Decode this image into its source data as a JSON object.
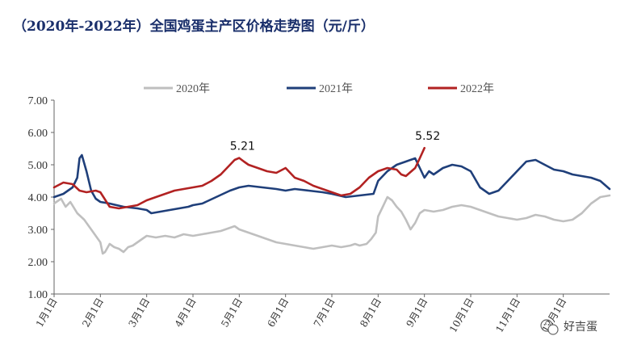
{
  "chart_data": {
    "type": "line",
    "title": "（2020年-2022年）全国鸡蛋主产区价格走势图（元/斤）",
    "ylim": [
      1.0,
      7.0
    ],
    "yticks": [
      "1.00",
      "2.00",
      "3.00",
      "4.00",
      "5.00",
      "6.00",
      "7.00"
    ],
    "xlim": [
      1,
      13
    ],
    "xticks": [
      "1月1日",
      "2月1日",
      "3月1日",
      "4月1日",
      "5月1日",
      "6月1日",
      "7月1日",
      "8月1日",
      "9月1日",
      "10月1日",
      "11月1日",
      "12月1日"
    ],
    "legend_position": "top",
    "grid": false,
    "series": [
      {
        "name": "2020年",
        "color": "#bfbfbf",
        "x": [
          1.0,
          1.15,
          1.25,
          1.35,
          1.5,
          1.65,
          1.8,
          1.9,
          2.0,
          2.05,
          2.1,
          2.2,
          2.3,
          2.4,
          2.5,
          2.6,
          2.7,
          2.8,
          2.9,
          3.0,
          3.2,
          3.4,
          3.6,
          3.8,
          4.0,
          4.2,
          4.4,
          4.6,
          4.8,
          4.9,
          5.0,
          5.2,
          5.4,
          5.6,
          5.8,
          6.0,
          6.2,
          6.4,
          6.6,
          6.8,
          7.0,
          7.2,
          7.4,
          7.5,
          7.6,
          7.75,
          7.85,
          7.95,
          8.0,
          8.1,
          8.2,
          8.3,
          8.4,
          8.5,
          8.6,
          8.7,
          8.8,
          8.9,
          9.0,
          9.2,
          9.4,
          9.6,
          9.8,
          10.0,
          10.2,
          10.4,
          10.6,
          10.8,
          11.0,
          11.2,
          11.4,
          11.6,
          11.8,
          12.0,
          12.2,
          12.4,
          12.6,
          12.8,
          13.0
        ],
        "values": [
          3.8,
          3.95,
          3.7,
          3.85,
          3.5,
          3.3,
          3.0,
          2.8,
          2.6,
          2.25,
          2.3,
          2.55,
          2.45,
          2.4,
          2.3,
          2.45,
          2.5,
          2.6,
          2.7,
          2.8,
          2.75,
          2.8,
          2.75,
          2.85,
          2.8,
          2.85,
          2.9,
          2.95,
          3.05,
          3.1,
          3.0,
          2.9,
          2.8,
          2.7,
          2.6,
          2.55,
          2.5,
          2.45,
          2.4,
          2.45,
          2.5,
          2.45,
          2.5,
          2.55,
          2.5,
          2.55,
          2.7,
          2.9,
          3.4,
          3.7,
          4.0,
          3.9,
          3.7,
          3.55,
          3.3,
          3.0,
          3.2,
          3.5,
          3.6,
          3.55,
          3.6,
          3.7,
          3.75,
          3.7,
          3.6,
          3.5,
          3.4,
          3.35,
          3.3,
          3.35,
          3.45,
          3.4,
          3.3,
          3.25,
          3.3,
          3.5,
          3.8,
          4.0,
          4.05
        ]
      },
      {
        "name": "2021年",
        "color": "#1f3f7a",
        "x": [
          1.0,
          1.2,
          1.4,
          1.5,
          1.55,
          1.6,
          1.7,
          1.8,
          1.9,
          2.0,
          2.2,
          2.5,
          2.8,
          3.0,
          3.1,
          3.3,
          3.5,
          3.7,
          3.9,
          4.0,
          4.2,
          4.5,
          4.8,
          5.0,
          5.2,
          5.5,
          5.8,
          6.0,
          6.2,
          6.5,
          6.8,
          7.0,
          7.3,
          7.6,
          7.9,
          8.0,
          8.2,
          8.4,
          8.6,
          8.8,
          9.0,
          9.1,
          9.2,
          9.4,
          9.6,
          9.8,
          10.0,
          10.2,
          10.4,
          10.6,
          10.8,
          11.0,
          11.2,
          11.4,
          11.6,
          11.8,
          12.0,
          12.2,
          12.4,
          12.6,
          12.8,
          13.0
        ],
        "values": [
          4.0,
          4.1,
          4.3,
          4.6,
          5.2,
          5.3,
          4.8,
          4.2,
          3.95,
          3.85,
          3.8,
          3.7,
          3.65,
          3.6,
          3.5,
          3.55,
          3.6,
          3.65,
          3.7,
          3.75,
          3.8,
          4.0,
          4.2,
          4.3,
          4.35,
          4.3,
          4.25,
          4.2,
          4.25,
          4.2,
          4.15,
          4.1,
          4.0,
          4.05,
          4.1,
          4.5,
          4.8,
          5.0,
          5.1,
          5.2,
          4.6,
          4.8,
          4.7,
          4.9,
          5.0,
          4.95,
          4.8,
          4.3,
          4.1,
          4.2,
          4.5,
          4.8,
          5.1,
          5.15,
          5.0,
          4.85,
          4.8,
          4.7,
          4.65,
          4.6,
          4.5,
          4.25
        ]
      },
      {
        "name": "2022年",
        "color": "#b22222",
        "x": [
          1.0,
          1.2,
          1.4,
          1.55,
          1.7,
          1.9,
          2.0,
          2.2,
          2.4,
          2.6,
          2.8,
          3.0,
          3.2,
          3.4,
          3.6,
          3.8,
          4.0,
          4.2,
          4.4,
          4.6,
          4.8,
          4.9,
          5.0,
          5.1,
          5.2,
          5.4,
          5.6,
          5.8,
          6.0,
          6.2,
          6.4,
          6.6,
          6.8,
          7.0,
          7.2,
          7.4,
          7.6,
          7.8,
          8.0,
          8.2,
          8.4,
          8.5,
          8.6,
          8.8,
          8.9,
          9.0
        ],
        "values": [
          4.3,
          4.45,
          4.4,
          4.2,
          4.15,
          4.2,
          4.15,
          3.7,
          3.65,
          3.7,
          3.75,
          3.9,
          4.0,
          4.1,
          4.2,
          4.25,
          4.3,
          4.35,
          4.5,
          4.7,
          5.0,
          5.15,
          5.21,
          5.1,
          5.0,
          4.9,
          4.8,
          4.75,
          4.9,
          4.6,
          4.5,
          4.35,
          4.25,
          4.15,
          4.05,
          4.1,
          4.3,
          4.6,
          4.8,
          4.9,
          4.85,
          4.7,
          4.65,
          4.9,
          5.2,
          5.52
        ]
      }
    ],
    "annotations": [
      {
        "text": "5.21",
        "x": 5.0,
        "y": 5.21
      },
      {
        "text": "5.52",
        "x": 9.0,
        "y": 5.52
      }
    ],
    "watermark": "好吉蛋"
  }
}
